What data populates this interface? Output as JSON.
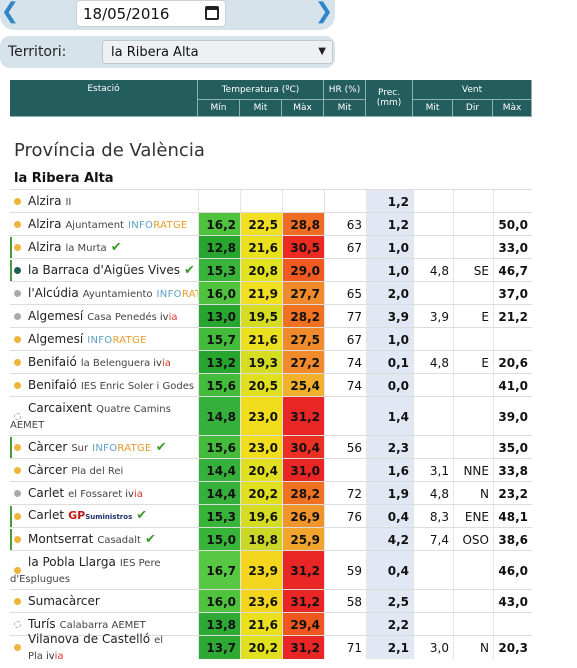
{
  "date_nav": {
    "date": "18/05/2016",
    "prev_icon": "chevron-left-icon",
    "next_icon": "chevron-right-icon",
    "calendar_icon": "calendar-icon"
  },
  "territory": {
    "label": "Territori:",
    "selected": "la Ribera Alta"
  },
  "header": {
    "station": "Estació",
    "temp": "Temperatura (ºC)",
    "hr": "HR (%)",
    "prec": "Prec. (mm)",
    "wind": "Vent",
    "min": "Mín",
    "mit": "Mit",
    "max": "Màx",
    "hr_mit": "Mit",
    "wind_mit": "Mit",
    "wind_dir": "Dir",
    "wind_max": "Màx"
  },
  "province": "Província de València",
  "region": "la Ribera Alta",
  "colors": {
    "header_bg": "#235d5e",
    "precip_bg": "#e2e8f3",
    "accent": "#2e86c8",
    "check": "#3a9a2a"
  },
  "rows": [
    {
      "name": "Alzira",
      "sub": "II",
      "dot": "orange",
      "bar": false,
      "check": false,
      "min": "",
      "mit": "",
      "max": "",
      "hr": "",
      "prec": "1,2",
      "wmit": "",
      "dir": "",
      "wmax": "",
      "tmin": "none",
      "tmit": "none",
      "tmax": "none"
    },
    {
      "name": "Alzira",
      "sub": "Ajuntament",
      "inf": [
        "INFO",
        "RATGE"
      ],
      "dot": "orange",
      "bar": false,
      "check": false,
      "min": "16,2",
      "mit": "22,5",
      "max": "28,8",
      "hr": "63",
      "prec": "1,2",
      "wmit": "",
      "dir": "",
      "wmax": "50,0",
      "tmin": "#4fc23e",
      "tmit": "#f0e021",
      "tmax": "#f06b24"
    },
    {
      "name": "Alzira",
      "sub": "la Murta",
      "dot": "orange",
      "bar": true,
      "check": true,
      "min": "12,8",
      "mit": "21,6",
      "max": "30,5",
      "hr": "67",
      "prec": "1,0",
      "wmit": "",
      "dir": "",
      "wmax": "33,0",
      "tmin": "#27a52f",
      "tmit": "#ebe01e",
      "tmax": "#eb2a22"
    },
    {
      "name": "la Barraca d'Aigües Vives",
      "sub": "",
      "dot": "green",
      "bar": true,
      "check": true,
      "min": "15,3",
      "mit": "20,8",
      "max": "29,0",
      "hr": "",
      "prec": "1,0",
      "wmit": "4,8",
      "dir": "SE",
      "wmax": "46,7",
      "tmin": "#38b43a",
      "tmit": "#e3e21f",
      "tmax": "#f0591f"
    },
    {
      "name": "l'Alcúdia",
      "sub": "Ayuntamiento",
      "inf": [
        "INFO",
        "RATGE"
      ],
      "dot": "gray",
      "bar": false,
      "check": false,
      "min": "16,0",
      "mit": "21,9",
      "max": "27,7",
      "hr": "65",
      "prec": "2,0",
      "wmit": "",
      "dir": "",
      "wmax": "37,0",
      "tmin": "#4fc23e",
      "tmit": "#f0e021",
      "tmax": "#f08a2a"
    },
    {
      "name": "Algemesí",
      "sub": "Casa Penedés",
      "ivia": [
        "iv",
        "ia"
      ],
      "dot": "gray",
      "bar": false,
      "check": false,
      "min": "13,0",
      "mit": "19,5",
      "max": "28,2",
      "hr": "77",
      "prec": "3,9",
      "wmit": "3,9",
      "dir": "E",
      "wmax": "21,2",
      "tmin": "#27a52f",
      "tmit": "#d5dc22",
      "tmax": "#f0711f"
    },
    {
      "name": "Algemesí",
      "sub": "",
      "inf": [
        "INFO",
        "RATGE"
      ],
      "dot": "orange",
      "bar": false,
      "check": false,
      "min": "15,7",
      "mit": "21,6",
      "max": "27,5",
      "hr": "67",
      "prec": "1,0",
      "wmit": "",
      "dir": "",
      "wmax": "",
      "tmin": "#44bb3b",
      "tmit": "#ebe01e",
      "tmax": "#f08a2a"
    },
    {
      "name": "Benifaió",
      "sub": "la Belenguera",
      "ivia": [
        "iv",
        "ia"
      ],
      "dot": "orange",
      "bar": false,
      "check": false,
      "min": "13,2",
      "mit": "19,3",
      "max": "27,2",
      "hr": "74",
      "prec": "0,1",
      "wmit": "4,8",
      "dir": "E",
      "wmax": "20,6",
      "tmin": "#27a52f",
      "tmit": "#d5dc22",
      "tmax": "#f08a2a"
    },
    {
      "name": "Benifaió",
      "sub": "IES Enric Soler i Godes",
      "dot": "orange",
      "bar": false,
      "check": false,
      "min": "15,6",
      "mit": "20,5",
      "max": "25,4",
      "hr": "74",
      "prec": "0,0",
      "wmit": "",
      "dir": "",
      "wmax": "41,0",
      "tmin": "#44bb3b",
      "tmit": "#e0e020",
      "tmax": "#f2b02d"
    },
    {
      "name": "Carcaixent",
      "sub": "Quatre Camins",
      "line2": "AEMET",
      "dot": "empty",
      "bar": false,
      "check": false,
      "min": "14,8",
      "mit": "23,0",
      "max": "31,2",
      "hr": "",
      "prec": "1,4",
      "wmit": "",
      "dir": "",
      "wmax": "39,0",
      "tmin": "#35b03a",
      "tmit": "#f1dc1e",
      "tmax": "#e92626"
    },
    {
      "name": "Càrcer",
      "sub": "Sur",
      "inf": [
        "INFO",
        "RATGE"
      ],
      "dot": "orange",
      "bar": true,
      "check": true,
      "min": "15,6",
      "mit": "23,0",
      "max": "30,4",
      "hr": "56",
      "prec": "2,3",
      "wmit": "",
      "dir": "",
      "wmax": "35,0",
      "tmin": "#44bb3b",
      "tmit": "#f1dc1e",
      "tmax": "#eb2f22"
    },
    {
      "name": "Càrcer",
      "sub": "Pla del Rei",
      "dot": "orange",
      "bar": false,
      "check": false,
      "min": "14,4",
      "mit": "20,4",
      "max": "31,0",
      "hr": "",
      "prec": "1,6",
      "wmit": "3,1",
      "dir": "NNE",
      "wmax": "33,8",
      "tmin": "#35b03a",
      "tmit": "#e0e020",
      "tmax": "#e92626"
    },
    {
      "name": "Carlet",
      "sub": "el Fossaret",
      "ivia": [
        "iv",
        "ia"
      ],
      "dot": "gray",
      "bar": false,
      "check": false,
      "min": "14,4",
      "mit": "20,2",
      "max": "28,2",
      "hr": "72",
      "prec": "1,9",
      "wmit": "4,8",
      "dir": "N",
      "wmax": "23,2",
      "tmin": "#35b03a",
      "tmit": "#e0e020",
      "tmax": "#f0711f"
    },
    {
      "name": "Carlet",
      "sub": "",
      "gp": [
        "GP",
        "Suministros"
      ],
      "dot": "orange",
      "bar": true,
      "check": true,
      "min": "15,3",
      "mit": "19,6",
      "max": "26,9",
      "hr": "76",
      "prec": "0,4",
      "wmit": "8,3",
      "dir": "ENE",
      "wmax": "48,1",
      "tmin": "#38b43a",
      "tmit": "#d5dc22",
      "tmax": "#f0952c"
    },
    {
      "name": "Montserrat",
      "sub": "Casadalt",
      "dot": "orange",
      "bar": true,
      "check": true,
      "min": "15,0",
      "mit": "18,8",
      "max": "25,9",
      "hr": "",
      "prec": "4,2",
      "wmit": "7,4",
      "dir": "OSO",
      "wmax": "38,6",
      "tmin": "#38b43a",
      "tmit": "#cbd726",
      "tmax": "#f2a52d"
    },
    {
      "name": "la Pobla Llarga",
      "sub": "IES Pere",
      "line2": "d'Esplugues",
      "dot": "orange",
      "bar": false,
      "check": false,
      "min": "16,7",
      "mit": "23,9",
      "max": "31,2",
      "hr": "59",
      "prec": "0,4",
      "wmit": "",
      "dir": "",
      "wmax": "46,0",
      "tmin": "#58c743",
      "tmit": "#f4d51e",
      "tmax": "#e92626"
    },
    {
      "name": "Sumacàrcer",
      "sub": "",
      "dot": "orange",
      "bar": false,
      "check": false,
      "min": "16,0",
      "mit": "23,6",
      "max": "31,2",
      "hr": "58",
      "prec": "2,5",
      "wmit": "",
      "dir": "",
      "wmax": "43,0",
      "tmin": "#4fc23e",
      "tmit": "#f4d51e",
      "tmax": "#e92626"
    },
    {
      "name": "Turís",
      "sub": "Calabarra AEMET",
      "dot": "empty",
      "bar": false,
      "check": false,
      "min": "13,8",
      "mit": "21,6",
      "max": "29,4",
      "hr": "",
      "prec": "2,2",
      "wmit": "",
      "dir": "",
      "wmax": "",
      "tmin": "#2ea934",
      "tmit": "#ebe01e",
      "tmax": "#f0561f"
    },
    {
      "name": "Vilanova de Castelló",
      "sub": "el Pla",
      "ivia": [
        "iv",
        "ia"
      ],
      "dot": "orange",
      "bar": false,
      "check": false,
      "min": "13,7",
      "mit": "20,2",
      "max": "31,2",
      "hr": "71",
      "prec": "2,1",
      "wmit": "3,0",
      "dir": "N",
      "wmax": "20,3",
      "tmin": "#2ea934",
      "tmit": "#e0e020",
      "tmax": "#e92626"
    }
  ]
}
